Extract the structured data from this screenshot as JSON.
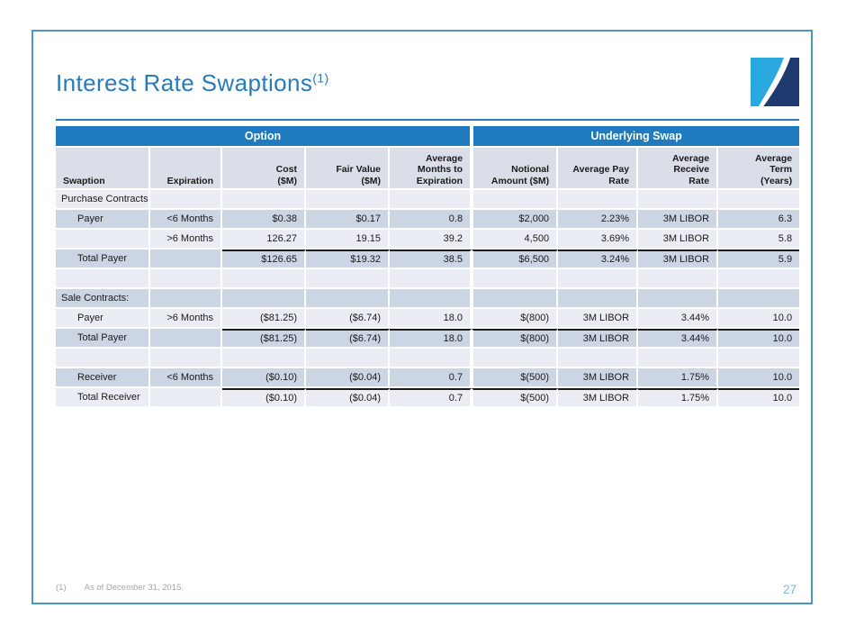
{
  "slide": {
    "title": "Interest Rate Swaptions",
    "title_superscript": "(1)",
    "page_number": "27",
    "footnote": {
      "marker": "(1)",
      "text": "As of December 31, 2015."
    }
  },
  "colors": {
    "title_blue": "#2979BD",
    "slide_border_blue": "#4F95CB",
    "header_band_blue": "#1F7BBE",
    "column_header_bg": "#D9DEE8",
    "row_dark": "#CBD5E4",
    "row_light": "#EAEEF4",
    "total_rule_black": "#1a1a1a",
    "footnote_gray": "#A6A6A6",
    "page_number_blue": "#86B2DC",
    "logo_light_blue": "#2AA9E0",
    "logo_dark_blue": "#1E3A6E"
  },
  "table": {
    "group_headers": [
      {
        "label": "Option",
        "span": 5
      },
      {
        "label": "Underlying Swap",
        "span": 4
      }
    ],
    "columns": [
      {
        "key": "swaption",
        "label": "Swaption",
        "align": "left"
      },
      {
        "key": "expiration",
        "label": "Expiration",
        "align": "right"
      },
      {
        "key": "cost",
        "label": "Cost\n($M)",
        "align": "right"
      },
      {
        "key": "fair-value",
        "label": "Fair Value\n($M)",
        "align": "right"
      },
      {
        "key": "avg-months-to-expiration",
        "label": "Average\nMonths to\nExpiration",
        "align": "right"
      },
      {
        "key": "notional-amount",
        "label": "Notional\nAmount ($M)",
        "align": "right"
      },
      {
        "key": "avg-pay-rate",
        "label": "Average Pay\nRate",
        "align": "right"
      },
      {
        "key": "avg-receive-rate",
        "label": "Average\nReceive\nRate",
        "align": "right"
      },
      {
        "key": "avg-term",
        "label": "Average\nTerm\n(Years)",
        "align": "right"
      }
    ],
    "rows": [
      {
        "cells": [
          "Purchase Contracts:",
          "",
          "",
          "",
          "",
          "",
          "",
          "",
          ""
        ],
        "shade": "light",
        "indent": false,
        "total": false
      },
      {
        "cells": [
          "Payer",
          "<6 Months",
          "$0.38",
          "$0.17",
          "0.8",
          "$2,000",
          "2.23%",
          "3M LIBOR",
          "6.3"
        ],
        "shade": "dark",
        "indent": true,
        "total": false
      },
      {
        "cells": [
          "",
          ">6 Months",
          "126.27",
          "19.15",
          "39.2",
          "4,500",
          "3.69%",
          "3M LIBOR",
          "5.8"
        ],
        "shade": "light",
        "indent": false,
        "total": false
      },
      {
        "cells": [
          "Total Payer",
          "",
          "$126.65",
          "$19.32",
          "38.5",
          "$6,500",
          "3.24%",
          "3M LIBOR",
          "5.9"
        ],
        "shade": "dark",
        "indent": true,
        "total": true
      },
      {
        "cells": [
          "",
          "",
          "",
          "",
          "",
          "",
          "",
          "",
          ""
        ],
        "shade": "light",
        "indent": false,
        "total": false
      },
      {
        "cells": [
          "Sale Contracts:",
          "",
          "",
          "",
          "",
          "",
          "",
          "",
          ""
        ],
        "shade": "dark",
        "indent": false,
        "total": false
      },
      {
        "cells": [
          "Payer",
          ">6 Months",
          "($81.25)",
          "($6.74)",
          "18.0",
          "$(800)",
          "3M LIBOR",
          "3.44%",
          "10.0"
        ],
        "shade": "light",
        "indent": true,
        "total": false
      },
      {
        "cells": [
          "Total Payer",
          "",
          "($81.25)",
          "($6.74)",
          "18.0",
          "$(800)",
          "3M LIBOR",
          "3.44%",
          "10.0"
        ],
        "shade": "dark",
        "indent": true,
        "total": true
      },
      {
        "cells": [
          "",
          "",
          "",
          "",
          "",
          "",
          "",
          "",
          ""
        ],
        "shade": "light",
        "indent": false,
        "total": false
      },
      {
        "cells": [
          "Receiver",
          "<6 Months",
          "($0.10)",
          "($0.04)",
          "0.7",
          "$(500)",
          "3M LIBOR",
          "1.75%",
          "10.0"
        ],
        "shade": "dark",
        "indent": true,
        "total": false
      },
      {
        "cells": [
          "Total Receiver",
          "",
          "($0.10)",
          "($0.04)",
          "0.7",
          "$(500)",
          "3M LIBOR",
          "1.75%",
          "10.0"
        ],
        "shade": "light",
        "indent": true,
        "total": true
      }
    ]
  }
}
